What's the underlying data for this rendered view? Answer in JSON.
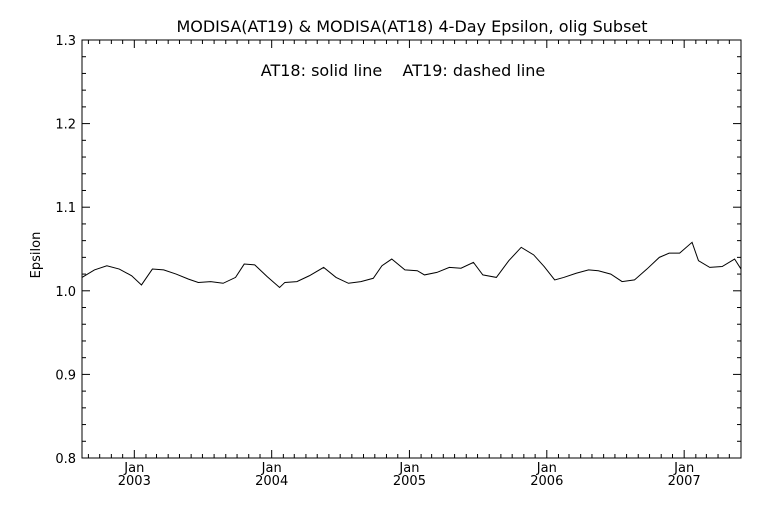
{
  "chart_data": {
    "type": "line",
    "title": "MODISA(AT19) & MODISA(AT18) 4-Day Epsilon, olig Subset",
    "annotation": "AT18: solid line    AT19: dashed line",
    "xlabel": "",
    "ylabel": "Epsilon",
    "xlim": [
      "2002-08-15",
      "2007-06-01"
    ],
    "ylim": [
      0.8,
      1.3
    ],
    "y_ticks": [
      "0.8",
      "0.9",
      "1.0",
      "1.1",
      "1.2",
      "1.3"
    ],
    "x_ticks": [
      {
        "date": "2003-01-01",
        "month": "Jan",
        "year": "2003"
      },
      {
        "date": "2004-01-01",
        "month": "Jan",
        "year": "2004"
      },
      {
        "date": "2005-01-01",
        "month": "Jan",
        "year": "2005"
      },
      {
        "date": "2006-01-01",
        "month": "Jan",
        "year": "2006"
      },
      {
        "date": "2007-01-01",
        "month": "Jan",
        "year": "2007"
      }
    ],
    "series": [
      {
        "style": "solid",
        "color": "#000000",
        "points": [
          [
            "2002-08-15",
            1.016
          ],
          [
            "2002-09-17",
            1.025
          ],
          [
            "2002-10-20",
            1.03
          ],
          [
            "2002-11-22",
            1.026
          ],
          [
            "2002-12-25",
            1.018
          ],
          [
            "2003-01-20",
            1.007
          ],
          [
            "2003-02-18",
            1.026
          ],
          [
            "2003-03-20",
            1.025
          ],
          [
            "2003-04-22",
            1.02
          ],
          [
            "2003-05-25",
            1.014
          ],
          [
            "2003-06-20",
            1.01
          ],
          [
            "2003-07-23",
            1.011
          ],
          [
            "2003-08-25",
            1.009
          ],
          [
            "2003-09-27",
            1.016
          ],
          [
            "2003-10-20",
            1.032
          ],
          [
            "2003-11-17",
            1.031
          ],
          [
            "2003-12-20",
            1.017
          ],
          [
            "2004-01-22",
            1.004
          ],
          [
            "2004-02-05",
            1.01
          ],
          [
            "2004-03-08",
            1.011
          ],
          [
            "2004-04-10",
            1.018
          ],
          [
            "2004-05-18",
            1.028
          ],
          [
            "2004-06-20",
            1.016
          ],
          [
            "2004-07-23",
            1.009
          ],
          [
            "2004-08-25",
            1.011
          ],
          [
            "2004-09-27",
            1.015
          ],
          [
            "2004-10-20",
            1.03
          ],
          [
            "2004-11-15",
            1.038
          ],
          [
            "2004-12-20",
            1.025
          ],
          [
            "2005-01-22",
            1.024
          ],
          [
            "2005-02-10",
            1.019
          ],
          [
            "2005-03-15",
            1.022
          ],
          [
            "2005-04-17",
            1.028
          ],
          [
            "2005-05-18",
            1.027
          ],
          [
            "2005-06-20",
            1.034
          ],
          [
            "2005-07-15",
            1.019
          ],
          [
            "2005-08-20",
            1.016
          ],
          [
            "2005-09-22",
            1.036
          ],
          [
            "2005-10-25",
            1.052
          ],
          [
            "2005-11-27",
            1.043
          ],
          [
            "2005-12-25",
            1.029
          ],
          [
            "2006-01-22",
            1.013
          ],
          [
            "2006-02-15",
            1.016
          ],
          [
            "2006-03-20",
            1.021
          ],
          [
            "2006-04-22",
            1.025
          ],
          [
            "2006-05-18",
            1.024
          ],
          [
            "2006-06-20",
            1.02
          ],
          [
            "2006-07-20",
            1.011
          ],
          [
            "2006-08-22",
            1.013
          ],
          [
            "2006-09-24",
            1.026
          ],
          [
            "2006-10-27",
            1.04
          ],
          [
            "2006-11-22",
            1.045
          ],
          [
            "2006-12-20",
            1.045
          ],
          [
            "2007-01-22",
            1.058
          ],
          [
            "2007-02-08",
            1.036
          ],
          [
            "2007-03-10",
            1.028
          ],
          [
            "2007-04-12",
            1.029
          ],
          [
            "2007-05-15",
            1.038
          ],
          [
            "2007-06-01",
            1.026
          ]
        ]
      }
    ]
  }
}
